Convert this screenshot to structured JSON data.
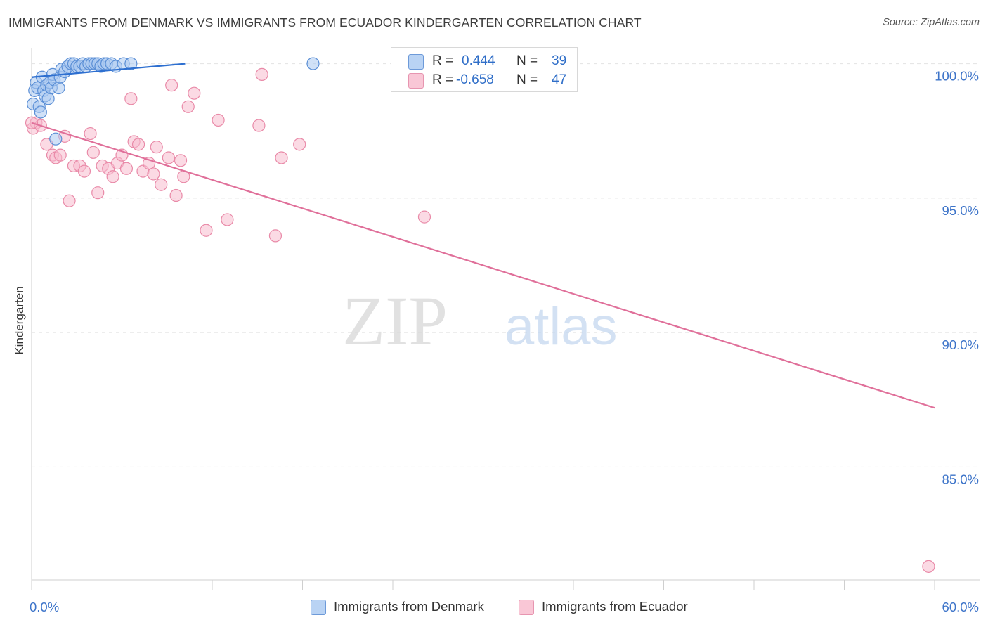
{
  "header": {
    "title": "IMMIGRANTS FROM DENMARK VS IMMIGRANTS FROM ECUADOR KINDERGARTEN CORRELATION CHART",
    "source": "Source: ZipAtlas.com"
  },
  "watermark": {
    "zip": "ZIP",
    "atlas": "atlas"
  },
  "legend": {
    "denmark": {
      "r_label": "R =",
      "r_value": "0.444",
      "n_label": "N =",
      "n_value": "39"
    },
    "ecuador": {
      "r_label": "R =",
      "r_value": "-0.658",
      "n_label": "N =",
      "n_value": "47"
    }
  },
  "bottom_legend": {
    "denmark": "Immigrants from Denmark",
    "ecuador": "Immigrants from Ecuador"
  },
  "colors": {
    "denmark_fill": "#aac8f0",
    "denmark_stroke": "#5b8fd6",
    "denmark_line": "#2d6fd0",
    "ecuador_fill": "#f7bccd",
    "ecuador_stroke": "#e98aa8",
    "ecuador_line": "#e0709a",
    "tick_label": "#3d74c9",
    "grid": "#e2e2e2"
  },
  "chart_data": {
    "type": "scatter",
    "title": "IMMIGRANTS FROM DENMARK VS IMMIGRANTS FROM ECUADOR KINDERGARTEN CORRELATION CHART",
    "xlabel": "",
    "ylabel": "Kindergarten",
    "xlim": [
      0,
      60
    ],
    "ylim": [
      80.8,
      100.8
    ],
    "x_tick_labels": [
      "0.0%",
      "60.0%"
    ],
    "y_ticks": [
      100,
      95,
      90,
      85
    ],
    "y_tick_labels": [
      "100.0%",
      "95.0%",
      "90.0%",
      "85.0%"
    ],
    "x_minor_ticks": [
      0,
      6,
      12,
      18,
      24,
      30,
      36,
      42,
      48,
      54,
      60
    ],
    "series": [
      {
        "name": "Immigrants from Denmark",
        "trend": {
          "x": [
            0.0,
            10.2
          ],
          "y": [
            99.5,
            100.0
          ]
        },
        "points": [
          [
            0.1,
            98.5
          ],
          [
            0.2,
            99.0
          ],
          [
            0.3,
            99.3
          ],
          [
            0.4,
            99.1
          ],
          [
            0.5,
            98.4
          ],
          [
            0.6,
            98.2
          ],
          [
            0.7,
            99.5
          ],
          [
            0.8,
            99.0
          ],
          [
            0.9,
            98.8
          ],
          [
            1.0,
            99.2
          ],
          [
            1.1,
            98.7
          ],
          [
            1.2,
            99.3
          ],
          [
            1.3,
            99.1
          ],
          [
            1.4,
            99.6
          ],
          [
            1.5,
            99.4
          ],
          [
            1.6,
            97.2
          ],
          [
            1.8,
            99.1
          ],
          [
            1.9,
            99.5
          ],
          [
            2.0,
            99.8
          ],
          [
            2.2,
            99.7
          ],
          [
            2.4,
            99.9
          ],
          [
            2.6,
            100.0
          ],
          [
            2.8,
            100.0
          ],
          [
            3.0,
            99.9
          ],
          [
            3.2,
            99.9
          ],
          [
            3.4,
            100.0
          ],
          [
            3.6,
            99.9
          ],
          [
            3.8,
            100.0
          ],
          [
            4.0,
            100.0
          ],
          [
            4.2,
            100.0
          ],
          [
            4.4,
            100.0
          ],
          [
            4.6,
            99.9
          ],
          [
            4.8,
            100.0
          ],
          [
            5.0,
            100.0
          ],
          [
            5.3,
            100.0
          ],
          [
            5.6,
            99.9
          ],
          [
            6.1,
            100.0
          ],
          [
            6.6,
            100.0
          ],
          [
            18.7,
            100.0
          ]
        ]
      },
      {
        "name": "Immigrants from Ecuador",
        "trend": {
          "x": [
            0.0,
            60.0
          ],
          "y": [
            97.8,
            87.2
          ]
        },
        "points": [
          [
            0.1,
            97.6
          ],
          [
            0.3,
            97.8
          ],
          [
            0.6,
            97.7
          ],
          [
            1.0,
            97.0
          ],
          [
            1.4,
            96.6
          ],
          [
            1.6,
            96.5
          ],
          [
            1.9,
            96.6
          ],
          [
            2.2,
            97.3
          ],
          [
            2.5,
            94.9
          ],
          [
            2.8,
            96.2
          ],
          [
            3.2,
            96.2
          ],
          [
            3.5,
            96.0
          ],
          [
            3.9,
            97.4
          ],
          [
            4.1,
            96.7
          ],
          [
            4.4,
            95.2
          ],
          [
            4.7,
            96.2
          ],
          [
            5.1,
            96.1
          ],
          [
            5.4,
            95.8
          ],
          [
            5.7,
            96.3
          ],
          [
            6.0,
            96.6
          ],
          [
            6.3,
            96.1
          ],
          [
            6.6,
            98.7
          ],
          [
            6.8,
            97.1
          ],
          [
            7.1,
            97.0
          ],
          [
            7.4,
            96.0
          ],
          [
            7.8,
            96.3
          ],
          [
            8.1,
            95.9
          ],
          [
            8.3,
            96.9
          ],
          [
            8.6,
            95.5
          ],
          [
            9.1,
            96.5
          ],
          [
            9.3,
            99.2
          ],
          [
            9.6,
            95.1
          ],
          [
            9.9,
            96.4
          ],
          [
            10.1,
            95.8
          ],
          [
            10.4,
            98.4
          ],
          [
            10.8,
            98.9
          ],
          [
            11.6,
            93.8
          ],
          [
            12.4,
            97.9
          ],
          [
            13.0,
            94.2
          ],
          [
            15.1,
            97.7
          ],
          [
            15.3,
            99.6
          ],
          [
            16.2,
            93.6
          ],
          [
            16.6,
            96.5
          ],
          [
            17.8,
            97.0
          ],
          [
            26.1,
            94.3
          ],
          [
            59.6,
            81.3
          ],
          [
            0.0,
            97.8
          ]
        ]
      }
    ]
  }
}
